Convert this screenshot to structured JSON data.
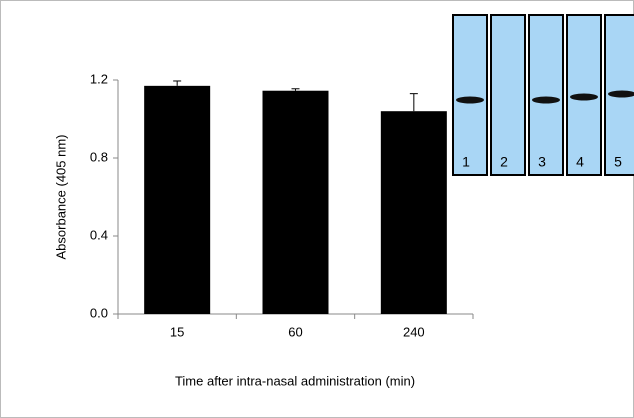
{
  "chart_data": {
    "type": "bar",
    "x_label": "Time after intra-nasal administration (min)",
    "y_label": "Absorbance (405 nm)",
    "categories": [
      "15",
      "60",
      "240"
    ],
    "values": [
      1.17,
      1.145,
      1.04
    ],
    "errors": [
      0.025,
      0.01,
      0.09
    ],
    "color": "#000000",
    "ylim": [
      0,
      1.2
    ],
    "yticks": [
      {
        "value": 0,
        "label": "0.0"
      },
      {
        "value": 0.4,
        "label": "0.4"
      },
      {
        "value": 0.8,
        "label": "0.8"
      },
      {
        "value": 1.2,
        "label": "1.2"
      }
    ],
    "grid": false
  },
  "inset": {
    "lane_labels": [
      "1",
      "2",
      "3",
      "4",
      "5"
    ]
  }
}
